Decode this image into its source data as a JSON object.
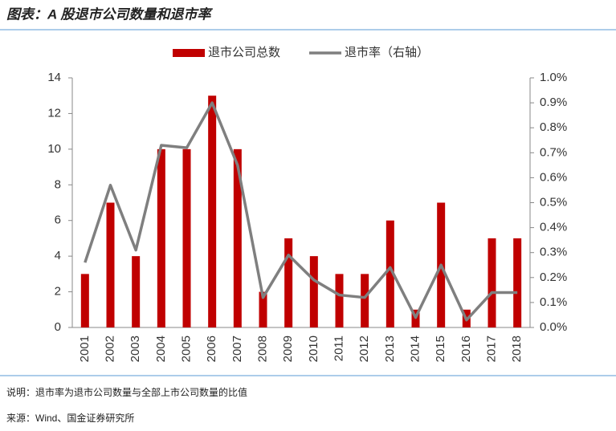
{
  "chart_data": {
    "type": "combo",
    "title": "图表：A 股退市公司数量和退市率",
    "categories": [
      "2001",
      "2002",
      "2003",
      "2004",
      "2005",
      "2006",
      "2007",
      "2008",
      "2009",
      "2010",
      "2011",
      "2012",
      "2013",
      "2014",
      "2015",
      "2016",
      "2017",
      "2018"
    ],
    "series": [
      {
        "name": "退市公司总数",
        "mark": "bar",
        "color": "#c00000",
        "values": [
          3,
          7,
          4,
          10,
          10,
          13,
          10,
          2,
          5,
          4,
          3,
          3,
          6,
          1,
          7,
          1,
          5,
          5
        ]
      },
      {
        "name": "退市率（右轴）",
        "mark": "line",
        "axis": "y2",
        "color": "#7f7f7f",
        "values": [
          0.26,
          0.57,
          0.31,
          0.73,
          0.72,
          0.9,
          0.65,
          0.12,
          0.29,
          0.19,
          0.13,
          0.12,
          0.24,
          0.04,
          0.25,
          0.03,
          0.14,
          0.14
        ]
      }
    ],
    "ylim": [
      0,
      14
    ],
    "yticks": [
      0,
      2,
      4,
      6,
      8,
      10,
      12,
      14
    ],
    "y2lim": [
      0,
      1.0
    ],
    "y2ticks": [
      {
        "value": 0,
        "label": "0.0%"
      },
      {
        "value": 0.1,
        "label": "0.1%"
      },
      {
        "value": 0.2,
        "label": "0.2%"
      },
      {
        "value": 0.3,
        "label": "0.3%"
      },
      {
        "value": 0.4,
        "label": "0.4%"
      },
      {
        "value": 0.5,
        "label": "0.5%"
      },
      {
        "value": 0.6,
        "label": "0.6%"
      },
      {
        "value": 0.7,
        "label": "0.7%"
      },
      {
        "value": 0.8,
        "label": "0.8%"
      },
      {
        "value": 0.9,
        "label": "0.9%"
      },
      {
        "value": 1.0,
        "label": "1.0%"
      }
    ],
    "grid": false,
    "note": "说明：退市率为退市公司数量与全部上市公司数量的比值",
    "source": "来源：Wind、国金证券研究所"
  }
}
